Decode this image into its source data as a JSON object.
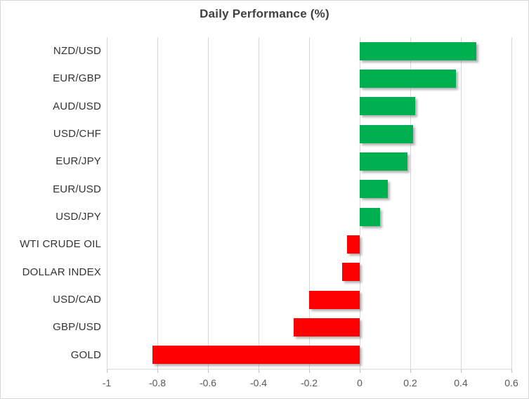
{
  "chart_data": {
    "type": "bar",
    "orientation": "horizontal",
    "title": "Daily Performance (%)",
    "categories": [
      "NZD/USD",
      "EUR/GBP",
      "AUD/USD",
      "USD/CHF",
      "EUR/JPY",
      "EUR/USD",
      "USD/JPY",
      "WTI CRUDE OIL",
      "DOLLAR INDEX",
      "USD/CAD",
      "GBP/USD",
      "GOLD"
    ],
    "values": [
      0.46,
      0.38,
      0.22,
      0.21,
      0.19,
      0.11,
      0.08,
      -0.05,
      -0.07,
      -0.2,
      -0.26,
      -0.82
    ],
    "xlabel": "",
    "ylabel": "",
    "xlim": [
      -1,
      0.6
    ],
    "x_tick_values": [
      -1,
      -0.8,
      -0.6,
      -0.4,
      -0.2,
      0,
      0.2,
      0.4,
      0.6
    ],
    "x_tick_labels": [
      "-1",
      "-0.8",
      "-0.6",
      "-0.4",
      "-0.2",
      "0",
      "0.2",
      "0.4",
      "0.6"
    ],
    "grid": "vertical",
    "legend": "none",
    "positive_color": "#00B050",
    "negative_color": "#FF0000",
    "gridline_color": "#d9d9d9"
  }
}
